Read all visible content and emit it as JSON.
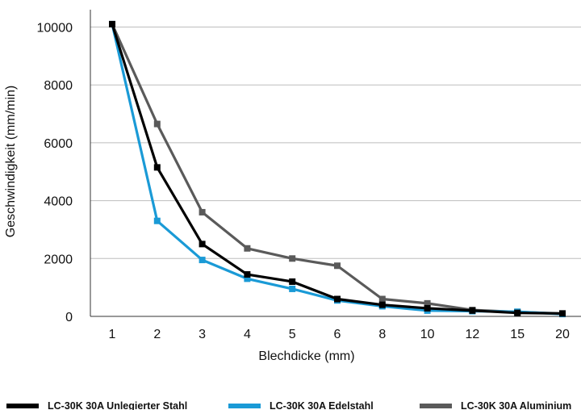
{
  "chart_data": {
    "type": "line",
    "title": "",
    "xlabel": "Blechdicke (mm)",
    "ylabel": "Geschwindigkeit (mm/min)",
    "categories": [
      "1",
      "2",
      "3",
      "4",
      "5",
      "6",
      "8",
      "10",
      "12",
      "15",
      "20"
    ],
    "ylim": [
      0,
      10000
    ],
    "yticks": [
      0,
      2000,
      4000,
      6000,
      8000,
      10000
    ],
    "grid": "horizontal",
    "legend_position": "bottom",
    "series": [
      {
        "name": "LC-30K 30A Aluminium",
        "color": "#5a5a5a",
        "values": [
          10100,
          6650,
          3600,
          2350,
          2000,
          1750,
          600,
          450,
          220,
          150,
          100
        ]
      },
      {
        "name": "LC-30K 30A Edelstahl",
        "color": "#1a9ad6",
        "values": [
          10100,
          3300,
          1950,
          1300,
          950,
          550,
          350,
          200,
          180,
          160,
          80
        ]
      },
      {
        "name": "LC-30K 30A Unlegierter Stahl",
        "color": "#000000",
        "values": [
          10100,
          5150,
          2500,
          1450,
          1200,
          600,
          400,
          280,
          200,
          120,
          100
        ]
      }
    ],
    "legend": [
      {
        "name": "LC-30K 30A Unlegierter Stahl",
        "color": "#000000"
      },
      {
        "name": "LC-30K 30A Edelstahl",
        "color": "#1a9ad6"
      },
      {
        "name": "LC-30K 30A Aluminium",
        "color": "#5a5a5a"
      }
    ]
  }
}
